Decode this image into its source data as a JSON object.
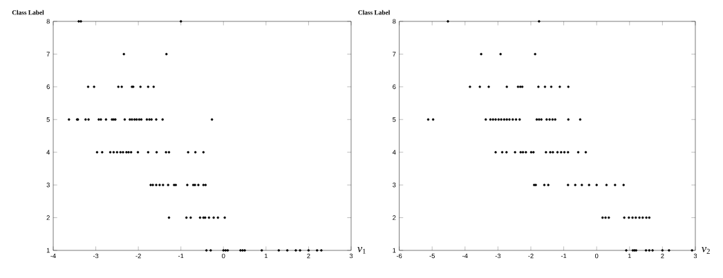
{
  "chart_data": [
    {
      "type": "scatter",
      "ylabel": "Class Label",
      "xlabel": "*v*$_{1}$",
      "marker": "circle",
      "color": "#000000",
      "xlim": [
        -4,
        3
      ],
      "ylim": [
        1,
        8
      ],
      "xticks": [
        -4,
        -3,
        -2,
        -1,
        0,
        1,
        2,
        3
      ],
      "yticks": [
        1,
        2,
        3,
        4,
        5,
        6,
        7,
        8
      ],
      "x": [
        -3.4,
        -3.35,
        -1.0,
        -2.34,
        -1.34,
        -3.18,
        -3.04,
        -2.47,
        -2.39,
        -2.15,
        -2.12,
        -1.95,
        -1.77,
        -1.64,
        -3.63,
        -3.44,
        -3.42,
        -3.24,
        -3.17,
        -2.93,
        -2.88,
        -2.76,
        -2.62,
        -2.58,
        -2.54,
        -2.32,
        -2.2,
        -2.15,
        -2.09,
        -2.04,
        -1.98,
        -1.93,
        -1.8,
        -1.74,
        -1.69,
        -1.58,
        -1.43,
        -0.27,
        -2.97,
        -2.85,
        -2.66,
        -2.58,
        -2.5,
        -2.42,
        -2.36,
        -2.28,
        -2.23,
        -2.17,
        -2.01,
        -1.77,
        -1.57,
        -1.35,
        -1.28,
        -0.83,
        -0.66,
        -0.47,
        -1.71,
        -1.66,
        -1.58,
        -1.5,
        -1.42,
        -1.3,
        -1.16,
        -1.12,
        -0.85,
        -0.71,
        -0.67,
        -0.59,
        -0.47,
        -0.42,
        -1.28,
        -0.87,
        -0.77,
        -0.55,
        -0.47,
        -0.43,
        -0.34,
        -0.23,
        -0.13,
        0.03,
        -0.4,
        -0.3,
        0.0,
        0.05,
        0.1,
        0.4,
        0.45,
        0.5,
        0.9,
        1.3,
        1.5,
        1.7,
        1.8,
        2.0,
        2.2,
        2.3
      ],
      "values": [
        8,
        8,
        8,
        7,
        7,
        6,
        6,
        6,
        6,
        6,
        6,
        6,
        6,
        6,
        5,
        5,
        5,
        5,
        5,
        5,
        5,
        5,
        5,
        5,
        5,
        5,
        5,
        5,
        5,
        5,
        5,
        5,
        5,
        5,
        5,
        5,
        5,
        5,
        4,
        4,
        4,
        4,
        4,
        4,
        4,
        4,
        4,
        4,
        4,
        4,
        4,
        4,
        4,
        4,
        4,
        4,
        3,
        3,
        3,
        3,
        3,
        3,
        3,
        3,
        3,
        3,
        3,
        3,
        3,
        3,
        2,
        2,
        2,
        2,
        2,
        2,
        2,
        2,
        2,
        2,
        1,
        1,
        1,
        1,
        1,
        1,
        1,
        1,
        1,
        1,
        1,
        1,
        1,
        1,
        1,
        1
      ]
    },
    {
      "type": "scatter",
      "ylabel": "Class Label",
      "xlabel": "*v*$_{2}$",
      "marker": "circle",
      "color": "#000000",
      "xlim": [
        -6,
        3
      ],
      "ylim": [
        1,
        8
      ],
      "xticks": [
        -6,
        -5,
        -4,
        -3,
        -2,
        -1,
        0,
        1,
        2,
        3
      ],
      "yticks": [
        1,
        2,
        3,
        4,
        5,
        6,
        7,
        8
      ],
      "x": [
        -4.52,
        -1.75,
        -3.51,
        -2.92,
        -1.87,
        -3.85,
        -3.55,
        -3.28,
        -2.73,
        -2.39,
        -2.32,
        -2.26,
        -1.77,
        -1.57,
        -1.38,
        -1.12,
        -0.86,
        -5.12,
        -4.97,
        -3.37,
        -3.23,
        -3.15,
        -3.07,
        -2.98,
        -2.9,
        -2.81,
        -2.73,
        -2.65,
        -2.55,
        -2.45,
        -2.34,
        -1.82,
        -1.75,
        -1.68,
        -1.52,
        -1.43,
        -1.34,
        -1.26,
        -0.86,
        -0.5,
        -3.07,
        -2.87,
        -2.74,
        -2.48,
        -2.31,
        -2.24,
        -2.15,
        -1.99,
        -1.92,
        -1.54,
        -1.41,
        -1.33,
        -1.19,
        -1.08,
        -0.98,
        -0.87,
        -0.56,
        -0.33,
        -1.9,
        -1.85,
        -1.59,
        -1.47,
        -0.87,
        -0.65,
        -0.45,
        -0.23,
        0.0,
        0.3,
        0.56,
        0.82,
        0.18,
        0.27,
        0.37,
        0.84,
        0.98,
        1.09,
        1.19,
        1.3,
        1.4,
        1.51,
        1.6,
        0.9,
        1.1,
        1.15,
        1.2,
        1.5,
        1.6,
        1.7,
        2.0,
        2.2,
        2.9
      ],
      "values": [
        8,
        8,
        7,
        7,
        7,
        6,
        6,
        6,
        6,
        6,
        6,
        6,
        6,
        6,
        6,
        6,
        6,
        5,
        5,
        5,
        5,
        5,
        5,
        5,
        5,
        5,
        5,
        5,
        5,
        5,
        5,
        5,
        5,
        5,
        5,
        5,
        5,
        5,
        5,
        5,
        4,
        4,
        4,
        4,
        4,
        4,
        4,
        4,
        4,
        4,
        4,
        4,
        4,
        4,
        4,
        4,
        4,
        4,
        3,
        3,
        3,
        3,
        3,
        3,
        3,
        3,
        3,
        3,
        3,
        3,
        2,
        2,
        2,
        2,
        2,
        2,
        2,
        2,
        2,
        2,
        2,
        1,
        1,
        1,
        1,
        1,
        1,
        1,
        1,
        1,
        1
      ]
    }
  ]
}
